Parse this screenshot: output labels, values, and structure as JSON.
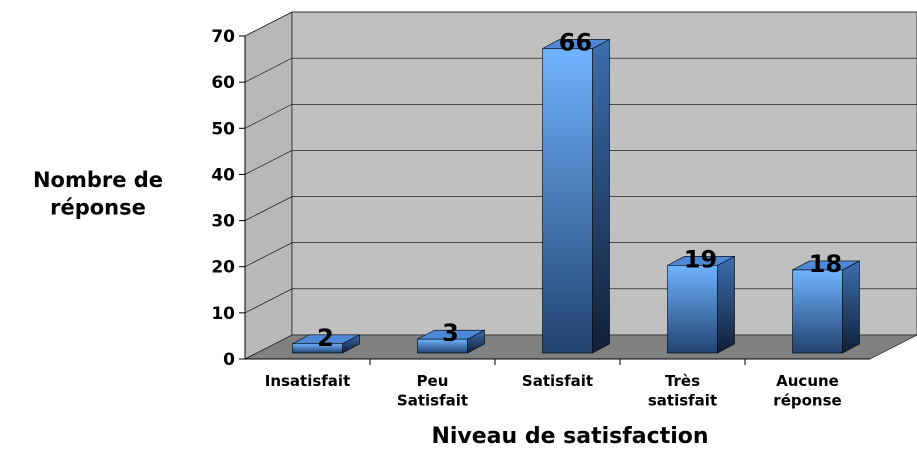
{
  "chart_data": {
    "type": "bar3d",
    "ylabel": "Nombre de\nréponse",
    "xlabel": "Niveau de satisfaction",
    "categories": [
      "Insatisfait",
      "Peu\nSatisfait",
      "Satisfait",
      "Très\nsatisfait",
      "Aucune\nréponse"
    ],
    "values": [
      2,
      3,
      66,
      19,
      18
    ],
    "color": "#5b9cf0",
    "ylim": [
      0,
      70
    ],
    "yticks": [
      0,
      10,
      20,
      30,
      40,
      50,
      60,
      70
    ],
    "grid": true
  }
}
